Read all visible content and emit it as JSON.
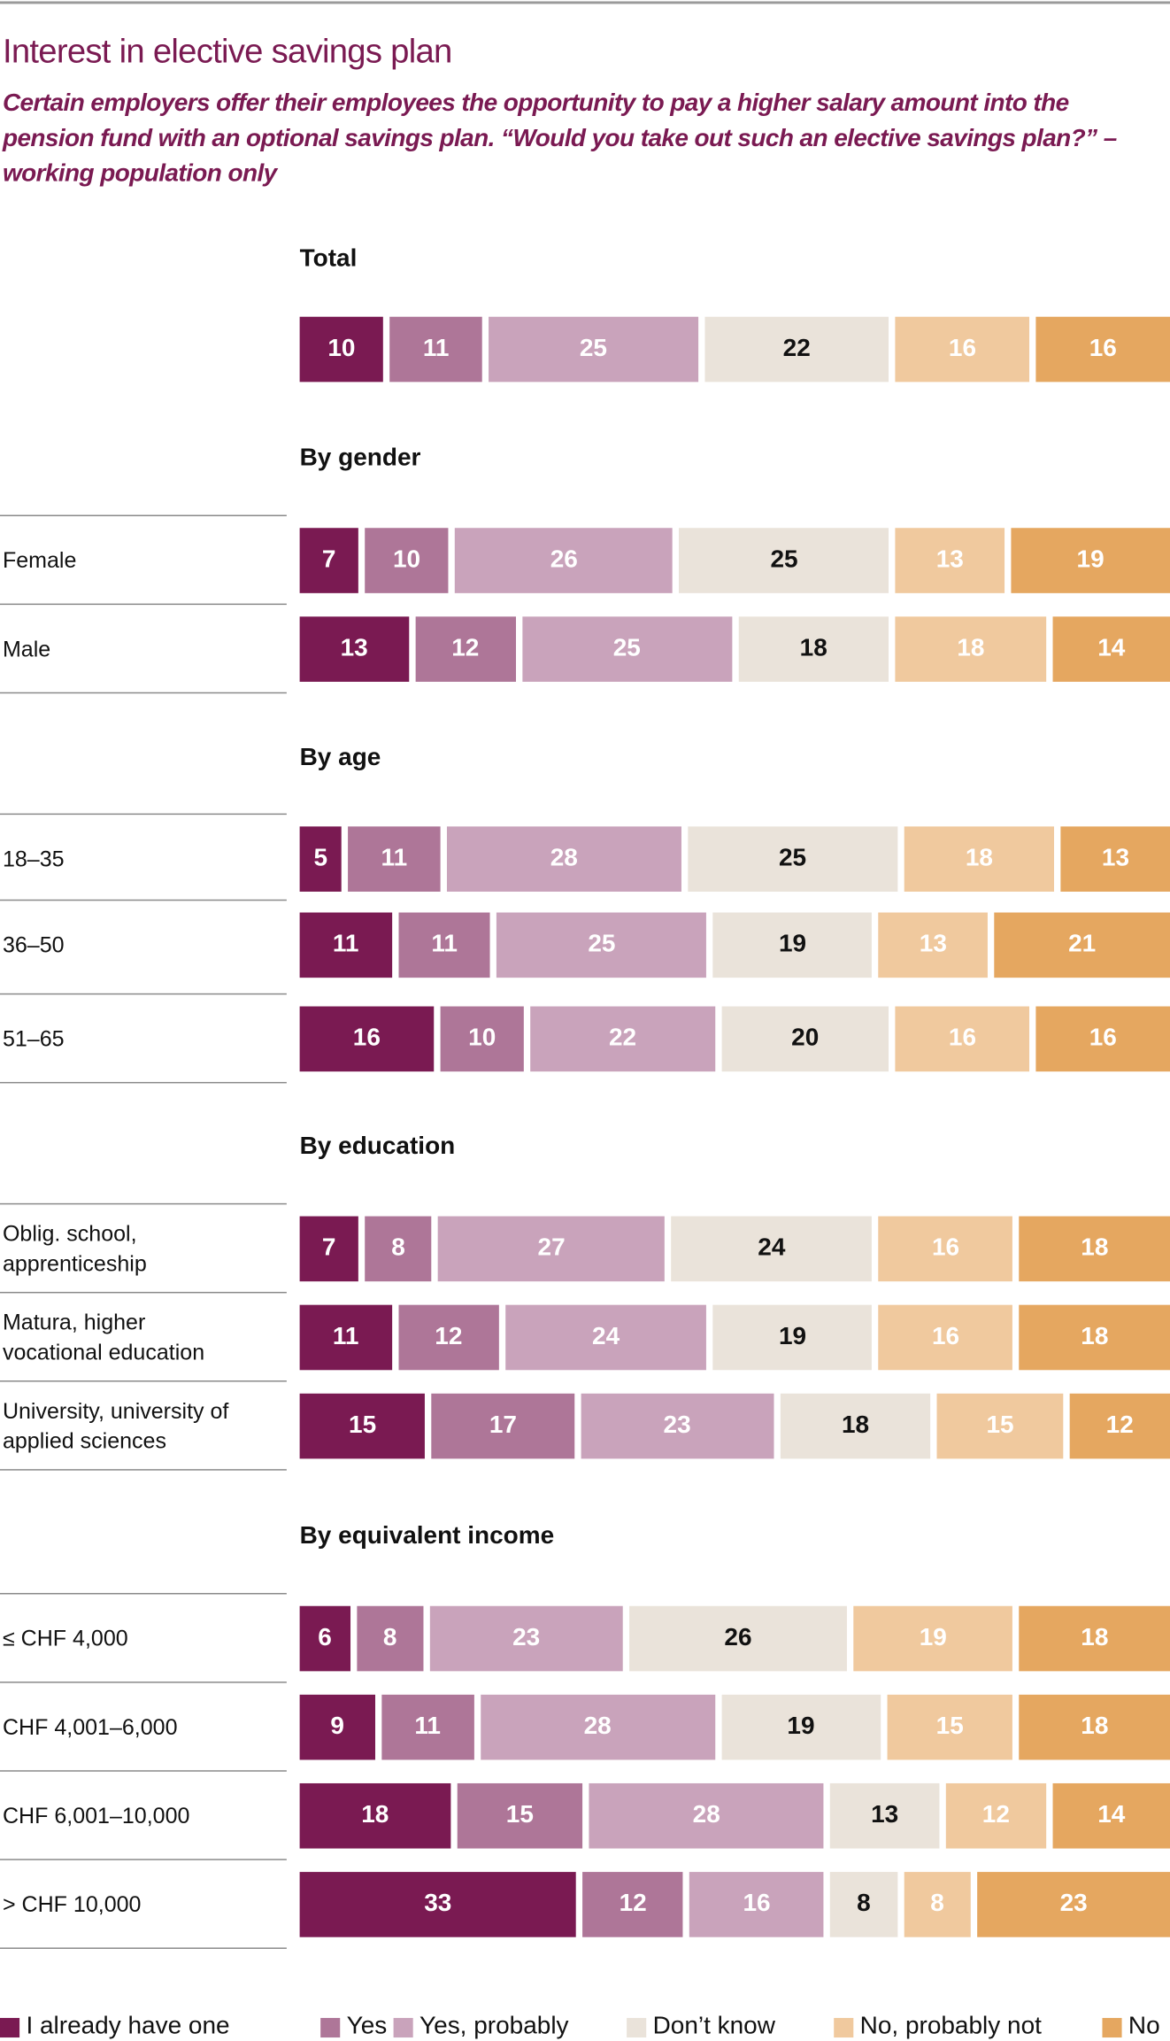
{
  "title": "Interest in elective savings plan",
  "subtitle": "Certain employers offer their employees the opportunity to pay a higher salary amount into the pension fund with an optional savings plan. “Would you take out such an elective savings plan?” – working population only",
  "chart_data": {
    "type": "bar",
    "orientation": "horizontal-stacked-100",
    "title": "Interest in elective savings plan",
    "legend_position": "bottom",
    "series": [
      {
        "name": "I already have one",
        "color": "#7a1a52"
      },
      {
        "name": "Yes",
        "color": "#ae7698"
      },
      {
        "name": "Yes, probably",
        "color": "#c9a3bb"
      },
      {
        "name": "Don’t know",
        "color": "#eae3da"
      },
      {
        "name": "No, probably not",
        "color": "#f0c99e"
      },
      {
        "name": "No",
        "color": "#e5a760"
      }
    ],
    "groups": [
      {
        "heading": "Total",
        "rows": [
          {
            "label": "",
            "values": [
              10,
              11,
              25,
              22,
              16,
              16
            ]
          }
        ]
      },
      {
        "heading": "By gender",
        "rows": [
          {
            "label": "Female",
            "values": [
              7,
              10,
              26,
              25,
              13,
              19
            ]
          },
          {
            "label": "Male",
            "values": [
              13,
              12,
              25,
              18,
              18,
              14
            ]
          }
        ]
      },
      {
        "heading": "By age",
        "rows": [
          {
            "label": "18–35",
            "values": [
              5,
              11,
              28,
              25,
              18,
              13
            ]
          },
          {
            "label": "36–50",
            "values": [
              11,
              11,
              25,
              19,
              13,
              21
            ]
          },
          {
            "label": "51–65",
            "values": [
              16,
              10,
              22,
              20,
              16,
              16
            ]
          }
        ]
      },
      {
        "heading": "By education",
        "rows": [
          {
            "label": "Oblig. school, apprenticeship",
            "values": [
              7,
              8,
              27,
              24,
              16,
              18
            ]
          },
          {
            "label": "Matura, higher vocational education",
            "values": [
              11,
              12,
              24,
              19,
              16,
              18
            ]
          },
          {
            "label": "University, university of applied sciences",
            "values": [
              15,
              17,
              23,
              18,
              15,
              12
            ]
          }
        ]
      },
      {
        "heading": "By equivalent income",
        "rows": [
          {
            "label": "≤ CHF 4,000",
            "values": [
              6,
              8,
              23,
              26,
              19,
              18
            ]
          },
          {
            "label": "CHF 4,001–6,000",
            "values": [
              9,
              11,
              28,
              19,
              15,
              18
            ]
          },
          {
            "label": "CHF 6,001–10,000",
            "values": [
              18,
              15,
              28,
              13,
              12,
              14
            ]
          },
          {
            "label": "> CHF 10,000",
            "values": [
              33,
              12,
              16,
              8,
              8,
              23
            ]
          }
        ]
      }
    ]
  }
}
